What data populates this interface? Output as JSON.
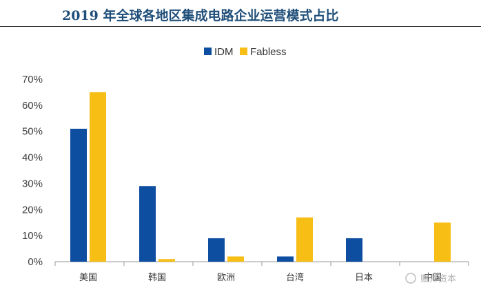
{
  "title": "2019 年全球各地区集成电路企业运营模式占比",
  "watermark": "赋斧资本",
  "colors": {
    "IDM": "#0e4ea1",
    "Fabless": "#f7be16",
    "title": "#1f4e79"
  },
  "chart_data": {
    "type": "bar",
    "categories": [
      "美国",
      "韩国",
      "欧洲",
      "台湾",
      "日本",
      "中国"
    ],
    "series": [
      {
        "name": "IDM",
        "values": [
          51,
          29,
          9,
          2,
          9,
          0
        ]
      },
      {
        "name": "Fabless",
        "values": [
          65,
          1,
          2,
          17,
          0,
          15
        ]
      }
    ],
    "ylim": [
      0,
      70
    ],
    "yticks": [
      "0%",
      "10%",
      "20%",
      "30%",
      "40%",
      "50%",
      "60%",
      "70%"
    ],
    "legend": "top-center",
    "grid": false
  }
}
